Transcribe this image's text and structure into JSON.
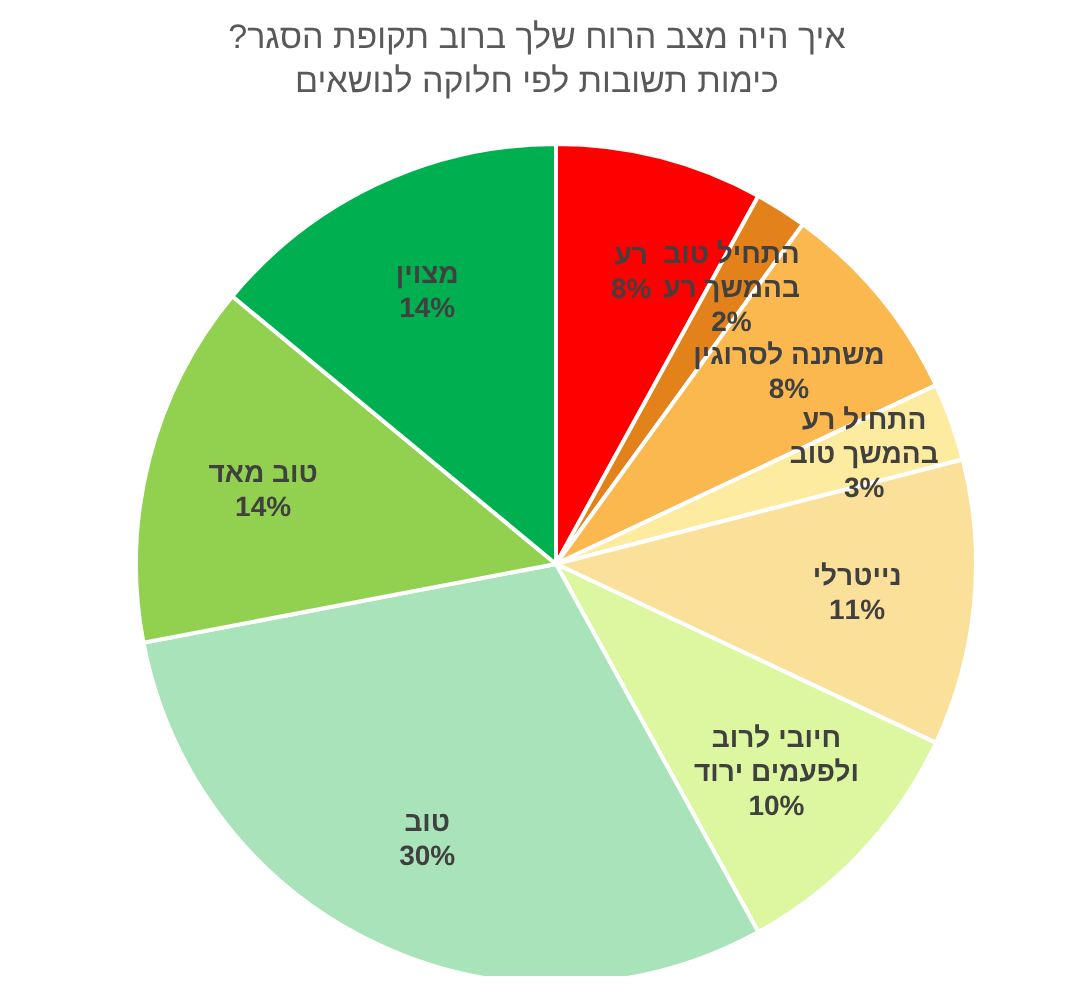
{
  "chart_data": {
    "type": "pie",
    "title": "איך היה מצב הרוח שלך ברוב תקופת הסגר?",
    "subtitle": "כימות תשובות לפי חלוקה לנושאים",
    "categories": [
      "רע",
      "התחיל טוב בהמשך רע",
      "משתנה לסרוגין",
      "התחיל רע בהמשך טוב",
      "נייטרלי",
      "חיובי לרוב ולפעמים ירוד",
      "טוב",
      "טוב מאד",
      "מצוין"
    ],
    "values": [
      8,
      2,
      8,
      3,
      11,
      10,
      30,
      14,
      14
    ],
    "value_labels": [
      "8%",
      "2%",
      "8%",
      "3%",
      "11%",
      "10%",
      "30%",
      "14%",
      "14%"
    ],
    "colors": [
      "#ff0000",
      "#e3821a",
      "#fbb84f",
      "#fdeca0",
      "#fbe09a",
      "#dcf7a0",
      "#a8e3b9",
      "#92d050",
      "#00b050"
    ]
  }
}
